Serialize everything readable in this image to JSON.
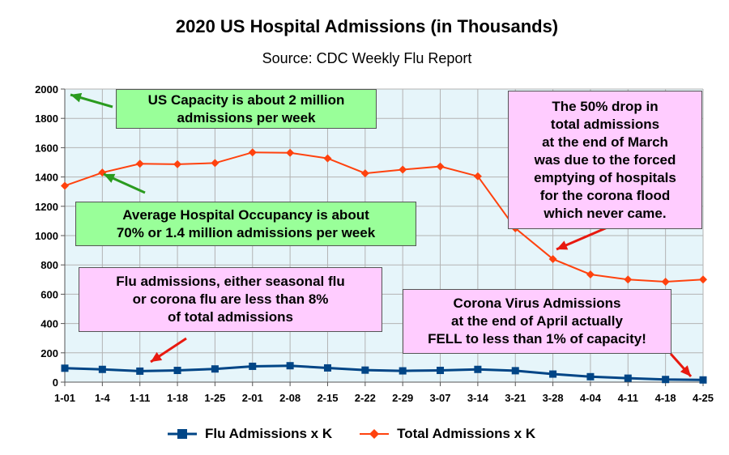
{
  "chart_data": {
    "type": "line",
    "title": "2020 US Hospital Admissions (in Thousands)",
    "subtitle": "Source: CDC Weekly Flu Report",
    "categories": [
      "1-01",
      "1-4",
      "1-11",
      "1-18",
      "1-25",
      "2-01",
      "2-08",
      "2-15",
      "2-22",
      "2-29",
      "3-07",
      "3-14",
      "3-21",
      "3-28",
      "4-04",
      "4-11",
      "4-18",
      "4-25"
    ],
    "ylim": [
      0,
      2000
    ],
    "yticks": [
      0,
      200,
      400,
      600,
      800,
      1000,
      1200,
      1400,
      1600,
      1800,
      2000
    ],
    "grid": true,
    "legend_position": "bottom",
    "series": [
      {
        "name": "Flu Admissions x K",
        "color": "#004586",
        "marker": "square",
        "values": [
          95,
          87,
          75,
          80,
          90,
          108,
          112,
          97,
          82,
          77,
          80,
          87,
          78,
          55,
          37,
          27,
          18,
          15
        ]
      },
      {
        "name": "Total Admissions x K",
        "color": "#ff420e",
        "marker": "diamond",
        "values": [
          1340,
          1430,
          1490,
          1487,
          1495,
          1568,
          1565,
          1527,
          1425,
          1450,
          1472,
          1405,
          1050,
          840,
          735,
          700,
          685,
          700
        ]
      }
    ],
    "annotations": [
      {
        "lines": [
          "US Capacity is about 2 million",
          "admissions per week"
        ],
        "style": "green"
      },
      {
        "lines": [
          "Average Hospital Occupancy is about",
          "70% or 1.4 million admissions per week"
        ],
        "style": "green"
      },
      {
        "lines": [
          "Flu admissions, either seasonal flu",
          "or corona flu are less than 8%",
          "of total admissions"
        ],
        "style": "pink"
      },
      {
        "lines": [
          "The 50% drop in",
          "total admissions",
          "at the end of March",
          "was due to the forced",
          "emptying of hospitals",
          "for the corona flood",
          "which never came."
        ],
        "style": "pink"
      },
      {
        "lines": [
          "Corona Virus Admissions",
          "at the end of April actually",
          "FELL to less than 1% of capacity!"
        ],
        "style": "pink"
      }
    ]
  },
  "colors": {
    "plot_background": "#e6f5fa",
    "grid": "#b3b3b3",
    "annotation_green": "#99ff99",
    "annotation_pink": "#ffccff",
    "green_arrow": "#2a9b1f",
    "red_arrow": "#e8190f"
  }
}
